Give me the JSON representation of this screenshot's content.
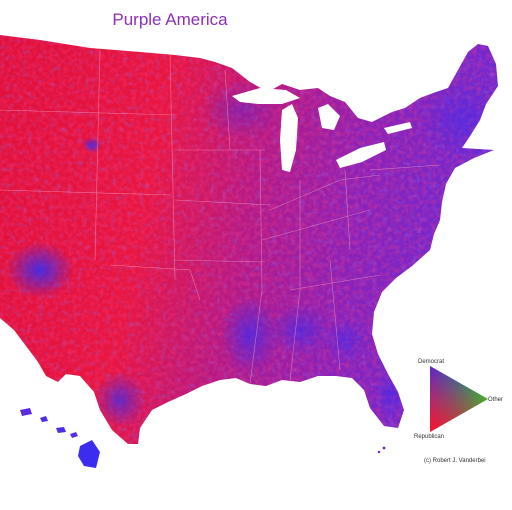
{
  "title": "Purple America",
  "legend": {
    "democrat": "Democrat",
    "republican": "Republican",
    "other": "Other",
    "colors": {
      "democrat": "#2a2cff",
      "republican": "#ff1030",
      "other": "#18d62a"
    }
  },
  "credit": "(c) Robert J. Vanderbei",
  "palette": {
    "red": "#f0183c",
    "purple": "#7a1fc8",
    "blue": "#3a2cf0"
  }
}
